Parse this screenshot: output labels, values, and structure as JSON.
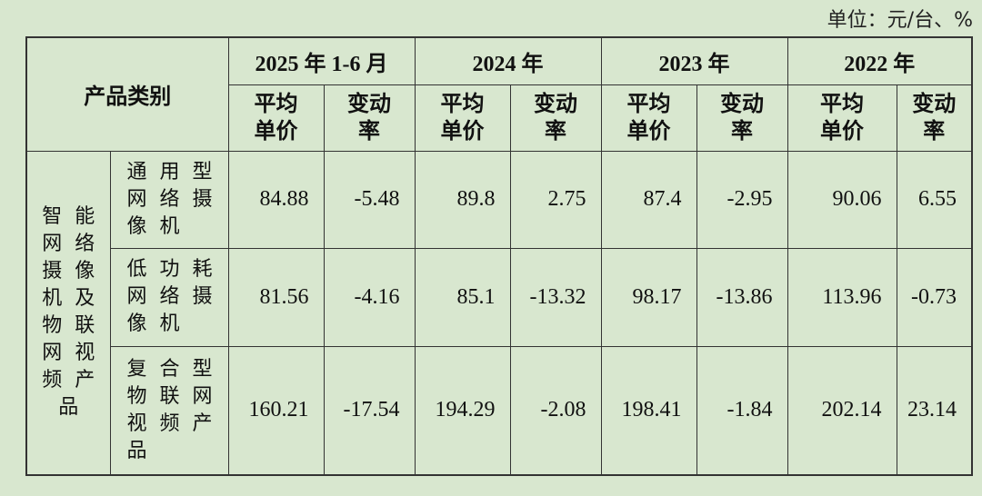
{
  "unit": "单位：元/台、%",
  "table": {
    "corner": "产品类别",
    "periods": [
      "2025 年 1-6 月",
      "2024 年",
      "2023 年",
      "2022 年"
    ],
    "subheaders": [
      "平均单价",
      "变动率"
    ],
    "group": "智能网络摄像机及物联网视频产品",
    "rows": [
      {
        "name": "通用型网络摄像机",
        "values": [
          84.88,
          -5.48,
          89.8,
          2.75,
          87.4,
          -2.95,
          90.06,
          6.55
        ]
      },
      {
        "name": "低功耗网络摄像机",
        "values": [
          81.56,
          -4.16,
          85.1,
          -13.32,
          98.17,
          -13.86,
          113.96,
          -0.73
        ]
      },
      {
        "name": "复合型物联网视频产品",
        "values": [
          160.21,
          -17.54,
          194.29,
          -2.08,
          198.41,
          -1.84,
          202.14,
          23.14
        ]
      }
    ]
  }
}
